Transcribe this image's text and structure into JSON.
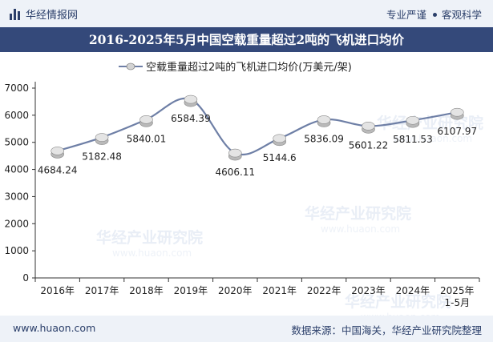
{
  "header": {
    "brand": "华经情报网",
    "tag1": "专业严谨",
    "tag2": "客观科学"
  },
  "footer": {
    "url": "www.huaon.com",
    "source": "数据来源：中国海关，华经产业研究院整理"
  },
  "watermark": {
    "cn": "华经产业研究院",
    "en": "www.huaon.com"
  },
  "colors": {
    "line": "#6e7fa6",
    "marker": "#cfcfcf",
    "title_bg": "#34497a"
  },
  "chart_data": {
    "type": "line",
    "title": "2016-2025年5月中国空载重量超过2吨的飞机进口均价",
    "legend": "空载重量超过2吨的飞机进口均价(万美元/架)",
    "categories": [
      "2016年",
      "2017年",
      "2018年",
      "2019年",
      "2020年",
      "2021年",
      "2022年",
      "2023年",
      "2024年",
      "2025年1-5月"
    ],
    "values": [
      4684.24,
      5182.48,
      5840.01,
      6584.39,
      4606.11,
      5144.6,
      5836.09,
      5601.22,
      5811.53,
      6107.97
    ],
    "value_labels": [
      "4684.24",
      "5182.48",
      "5840.01",
      "6584.39",
      "4606.11",
      "5144.6",
      "5836.09",
      "5601.22",
      "5811.53",
      "6107.97"
    ],
    "ylim": [
      0,
      7000
    ],
    "yticks": [
      0,
      1000,
      2000,
      3000,
      4000,
      5000,
      6000,
      7000
    ],
    "xlabel": "",
    "ylabel": ""
  }
}
